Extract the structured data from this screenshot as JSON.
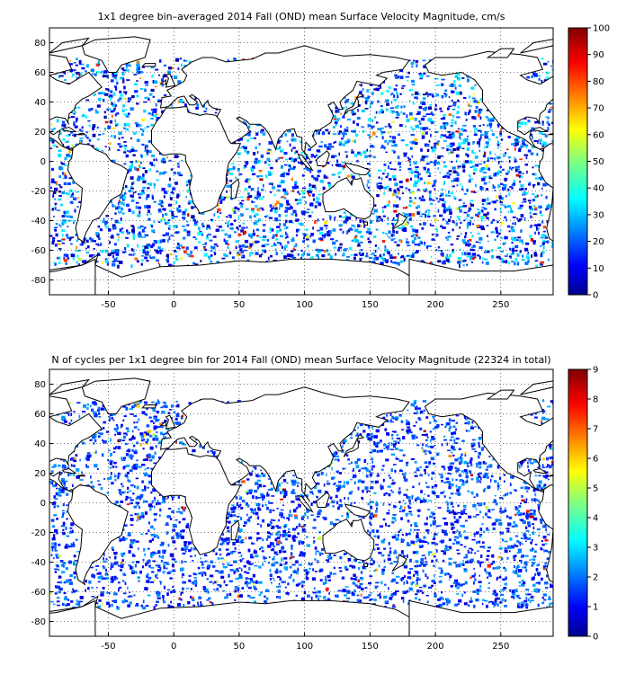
{
  "chart_data": [
    {
      "type": "heatmap",
      "title": "1x1 degree bin–averaged 2014 Fall (OND) mean Surface Velocity Magnitude, cm/s",
      "xlim": [
        -95,
        290
      ],
      "ylim": [
        -90,
        90
      ],
      "x_ticks": [
        -50,
        0,
        50,
        100,
        150,
        200,
        250
      ],
      "y_ticks": [
        80,
        60,
        40,
        20,
        0,
        -20,
        -40,
        -60,
        -80
      ],
      "grid": true,
      "colorbar": {
        "min": 0,
        "max": 100,
        "ticks": [
          0,
          10,
          20,
          30,
          40,
          50,
          60,
          70,
          80,
          90,
          100
        ],
        "colormap": "jet",
        "position": "right"
      },
      "note_values": "per-cell values are too dense to read individually; cells are predominantly 5-30 cm/s with higher values (60-100) along equatorial currents, Gulf Stream, Kuroshio and Agulhas"
    },
    {
      "type": "heatmap",
      "title": "N of cycles per 1x1 degree bin for 2014 Fall (OND) mean Surface Velocity Magnitude (22324 in total)",
      "xlim": [
        -95,
        290
      ],
      "ylim": [
        -90,
        90
      ],
      "x_ticks": [
        -50,
        0,
        50,
        100,
        150,
        200,
        250
      ],
      "y_ticks": [
        80,
        60,
        40,
        20,
        0,
        -20,
        -40,
        -60,
        -80
      ],
      "grid": true,
      "colorbar": {
        "min": 0,
        "max": 9,
        "ticks": [
          0,
          1,
          2,
          3,
          4,
          5,
          6,
          7,
          8,
          9
        ],
        "colormap": "jet",
        "position": "right"
      },
      "note_values": "per-cell counts are too dense to read individually; most cells have 1-2 cycles with a few reaching 6-9"
    }
  ],
  "colors": {
    "land": "#ffffff",
    "coast": "#000000",
    "grid": "#000000",
    "jet": [
      "#00008f",
      "#0000ff",
      "#0080ff",
      "#00ffff",
      "#80ff80",
      "#ffff00",
      "#ff8000",
      "#ff0000",
      "#800000"
    ]
  }
}
